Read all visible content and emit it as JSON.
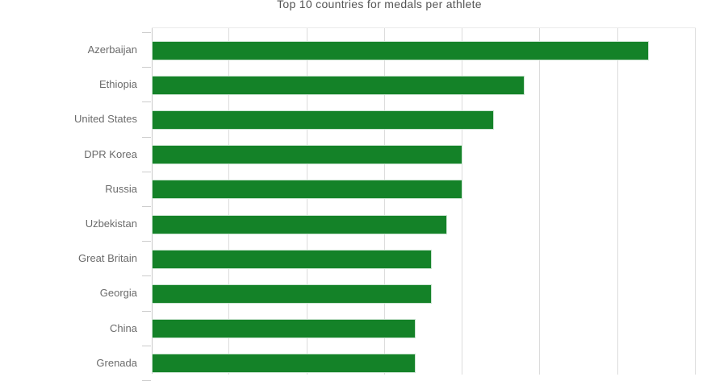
{
  "chart_data": {
    "type": "bar",
    "orientation": "horizontal",
    "title": "Top 10 countries for medals per athlete",
    "categories": [
      "Azerbaijan",
      "Ethiopia",
      "United States",
      "DPR Korea",
      "Russia",
      "Uzbekistan",
      "Great Britain",
      "Georgia",
      "China",
      "Grenada"
    ],
    "values": [
      6.4,
      4.8,
      4.4,
      4.0,
      4.0,
      3.8,
      3.6,
      3.6,
      3.4,
      3.4
    ],
    "xlabel": "",
    "ylabel": "",
    "xlim": [
      0,
      7
    ],
    "grid": "vertical gridlines at each unit interval; x-axis tick labels cut off at bottom of screenshot",
    "legend": "none",
    "colors": {
      "bar": "#148228",
      "bar_edge": "#c9e3cf",
      "gridline": "#dcdcdc",
      "axis_line": "#c9c9c9",
      "tick": "#cccccc",
      "label_text": "#6b6b6b",
      "title_text": "#555555",
      "background": "#ffffff"
    }
  }
}
